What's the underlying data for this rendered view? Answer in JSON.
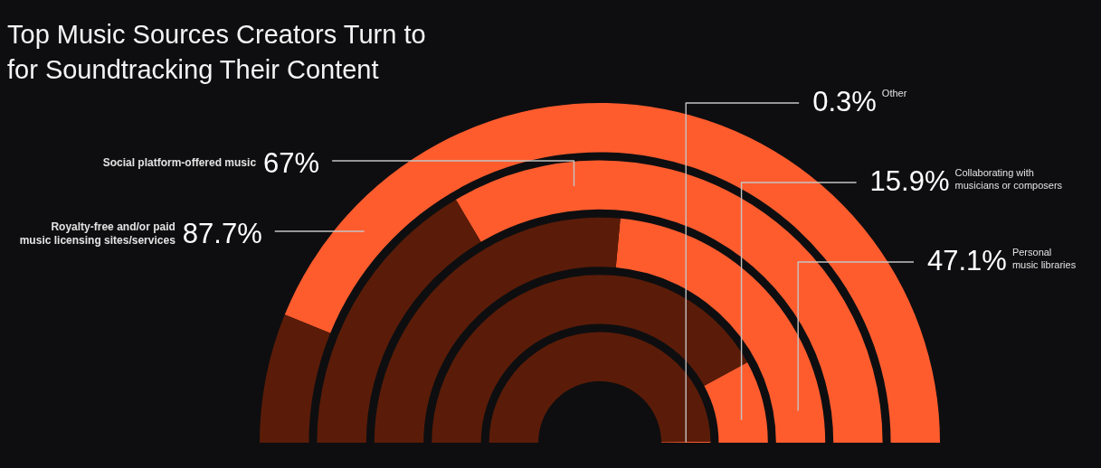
{
  "chart_data": [
    {
      "type": "donut",
      "title": "Top Music Sources Creators Turn to for Soundtracking Their Content",
      "categories": [
        "Royalty-free and/or paid music licensing sites/services",
        null
      ],
      "values": [
        87.7,
        12.3
      ],
      "colors": [
        "#ff5c2e",
        "#5a1c08"
      ],
      "value_labels": [
        "87.7%",
        null
      ]
    },
    {
      "type": "donut",
      "categories": [
        "Social platform-offered music",
        null
      ],
      "values": [
        67,
        33
      ],
      "colors": [
        "#ff5c2e",
        "#5a1c08"
      ],
      "value_labels": [
        "67%",
        null
      ]
    },
    {
      "type": "donut",
      "categories": [
        "Personal music libraries",
        null
      ],
      "values": [
        47.1,
        52.9
      ],
      "colors": [
        "#ff5c2e",
        "#5a1c08"
      ],
      "value_labels": [
        "47.1%",
        null
      ]
    },
    {
      "type": "donut",
      "categories": [
        "Collaborating with musicians or composers",
        null
      ],
      "values": [
        15.9,
        84.1
      ],
      "colors": [
        "#ff5c2e",
        "#5a1c08"
      ],
      "value_labels": [
        "15.9%",
        null
      ]
    },
    {
      "type": "donut",
      "categories": [
        "Other",
        null
      ],
      "values": [
        0.3,
        99.7
      ],
      "colors": [
        "#ff5c2e",
        "#5a1c08"
      ],
      "value_labels": [
        "0.3%",
        null
      ]
    }
  ]
}
